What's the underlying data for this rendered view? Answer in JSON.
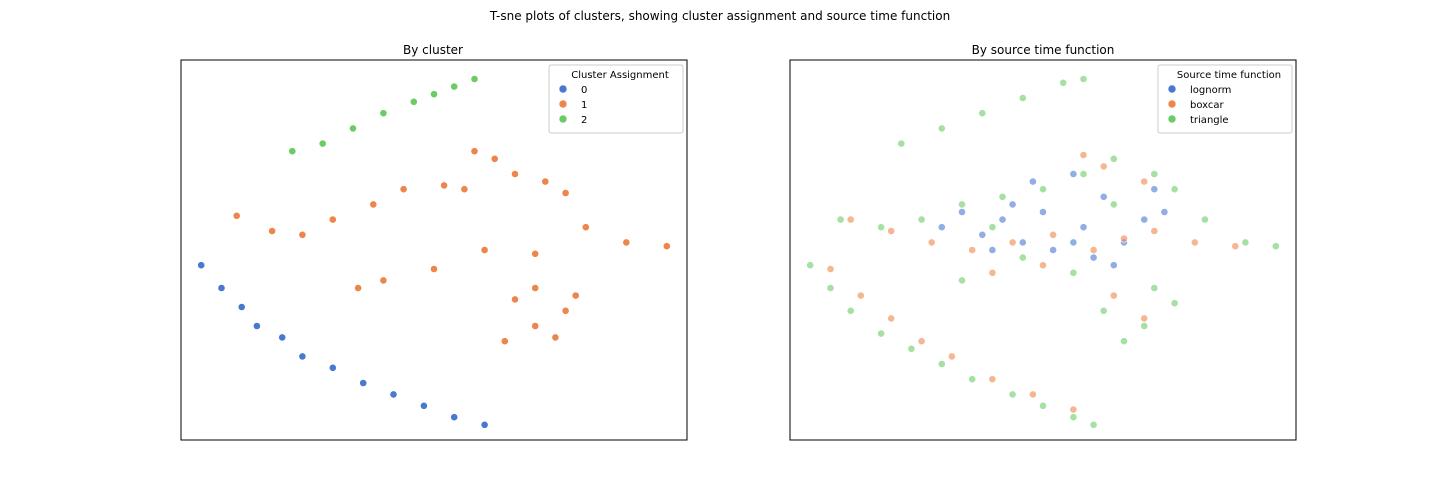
{
  "figure": {
    "suptitle": "T-sne plots of clusters, showing cluster assignment and source time function"
  },
  "colors": {
    "blue": "#4878d0",
    "orange": "#ee854a",
    "green": "#6acc64"
  },
  "chart_data": [
    {
      "type": "scatter",
      "title": "By cluster",
      "xlabel": "",
      "ylabel": "",
      "ticks": "none",
      "grid": false,
      "xlim": [
        0,
        100
      ],
      "ylim": [
        0,
        100
      ],
      "legend": {
        "title": "Cluster Assignment",
        "placement": "top-right",
        "entries": [
          {
            "label": "0",
            "color": "#4878d0"
          },
          {
            "label": "1",
            "color": "#ee854a"
          },
          {
            "label": "2",
            "color": "#6acc64"
          }
        ]
      },
      "series": [
        {
          "name": "0",
          "color": "#4878d0",
          "alpha": 1.0,
          "points": [
            [
              4,
              46
            ],
            [
              8,
              40
            ],
            [
              12,
              35
            ],
            [
              15,
              30
            ],
            [
              20,
              27
            ],
            [
              24,
              22
            ],
            [
              30,
              19
            ],
            [
              36,
              15
            ],
            [
              42,
              12
            ],
            [
              48,
              9
            ],
            [
              54,
              6
            ],
            [
              60,
              4
            ]
          ]
        },
        {
          "name": "1",
          "color": "#ee854a",
          "alpha": 1.0,
          "points": [
            [
              11,
              59
            ],
            [
              18,
              55
            ],
            [
              24,
              54
            ],
            [
              30,
              58
            ],
            [
              38,
              62
            ],
            [
              44,
              66
            ],
            [
              52,
              67
            ],
            [
              56,
              66
            ],
            [
              58,
              76
            ],
            [
              62,
              74
            ],
            [
              66,
              70
            ],
            [
              72,
              68
            ],
            [
              76,
              65
            ],
            [
              80,
              56
            ],
            [
              88,
              52
            ],
            [
              96,
              51
            ],
            [
              70,
              49
            ],
            [
              60,
              50
            ],
            [
              50,
              45
            ],
            [
              40,
              42
            ],
            [
              35,
              40
            ],
            [
              66,
              37
            ],
            [
              70,
              40
            ],
            [
              76,
              34
            ],
            [
              78,
              38
            ],
            [
              70,
              30
            ],
            [
              64,
              26
            ],
            [
              74,
              27
            ]
          ]
        },
        {
          "name": "2",
          "color": "#6acc64",
          "alpha": 1.0,
          "points": [
            [
              22,
              76
            ],
            [
              28,
              78
            ],
            [
              34,
              82
            ],
            [
              40,
              86
            ],
            [
              46,
              89
            ],
            [
              50,
              91
            ],
            [
              54,
              93
            ],
            [
              58,
              95
            ]
          ]
        }
      ]
    },
    {
      "type": "scatter",
      "title": "By source time function",
      "xlabel": "",
      "ylabel": "",
      "ticks": "none",
      "grid": false,
      "xlim": [
        0,
        100
      ],
      "ylim": [
        0,
        100
      ],
      "legend": {
        "title": "Source time function",
        "placement": "top-right",
        "entries": [
          {
            "label": "lognorm",
            "color": "#4878d0"
          },
          {
            "label": "boxcar",
            "color": "#ee854a"
          },
          {
            "label": "triangle",
            "color": "#6acc64"
          }
        ]
      },
      "series": [
        {
          "name": "lognorm",
          "color": "#4878d0",
          "alpha": 0.6,
          "points": [
            [
              30,
              56
            ],
            [
              38,
              54
            ],
            [
              42,
              58
            ],
            [
              46,
              52
            ],
            [
              52,
              50
            ],
            [
              56,
              52
            ],
            [
              60,
              48
            ],
            [
              64,
              46
            ],
            [
              58,
              56
            ],
            [
              50,
              60
            ],
            [
              44,
              62
            ],
            [
              62,
              64
            ],
            [
              56,
              70
            ],
            [
              70,
              58
            ],
            [
              74,
              60
            ],
            [
              48,
              68
            ],
            [
              34,
              60
            ],
            [
              66,
              52
            ],
            [
              72,
              66
            ],
            [
              40,
              50
            ]
          ]
        },
        {
          "name": "boxcar",
          "color": "#ee854a",
          "alpha": 0.6,
          "points": [
            [
              12,
              58
            ],
            [
              20,
              55
            ],
            [
              28,
              52
            ],
            [
              36,
              50
            ],
            [
              44,
              52
            ],
            [
              52,
              54
            ],
            [
              60,
              50
            ],
            [
              66,
              53
            ],
            [
              72,
              55
            ],
            [
              80,
              52
            ],
            [
              88,
              51
            ],
            [
              58,
              75
            ],
            [
              62,
              72
            ],
            [
              70,
              68
            ],
            [
              8,
              45
            ],
            [
              14,
              38
            ],
            [
              20,
              32
            ],
            [
              26,
              26
            ],
            [
              32,
              22
            ],
            [
              40,
              16
            ],
            [
              48,
              12
            ],
            [
              56,
              8
            ],
            [
              64,
              38
            ],
            [
              70,
              32
            ],
            [
              40,
              44
            ],
            [
              50,
              46
            ]
          ]
        },
        {
          "name": "triangle",
          "color": "#6acc64",
          "alpha": 0.6,
          "points": [
            [
              22,
              78
            ],
            [
              30,
              82
            ],
            [
              38,
              86
            ],
            [
              46,
              90
            ],
            [
              54,
              94
            ],
            [
              58,
              95
            ],
            [
              10,
              58
            ],
            [
              18,
              56
            ],
            [
              26,
              58
            ],
            [
              34,
              62
            ],
            [
              42,
              64
            ],
            [
              50,
              66
            ],
            [
              58,
              70
            ],
            [
              64,
              74
            ],
            [
              72,
              70
            ],
            [
              76,
              66
            ],
            [
              82,
              58
            ],
            [
              90,
              52
            ],
            [
              96,
              51
            ],
            [
              72,
              40
            ],
            [
              76,
              36
            ],
            [
              70,
              30
            ],
            [
              66,
              26
            ],
            [
              62,
              34
            ],
            [
              4,
              46
            ],
            [
              8,
              40
            ],
            [
              12,
              34
            ],
            [
              18,
              28
            ],
            [
              24,
              24
            ],
            [
              30,
              20
            ],
            [
              36,
              16
            ],
            [
              44,
              12
            ],
            [
              50,
              9
            ],
            [
              56,
              6
            ],
            [
              60,
              4
            ],
            [
              34,
              42
            ],
            [
              46,
              48
            ],
            [
              56,
              44
            ],
            [
              64,
              62
            ],
            [
              40,
              56
            ]
          ]
        }
      ]
    }
  ]
}
